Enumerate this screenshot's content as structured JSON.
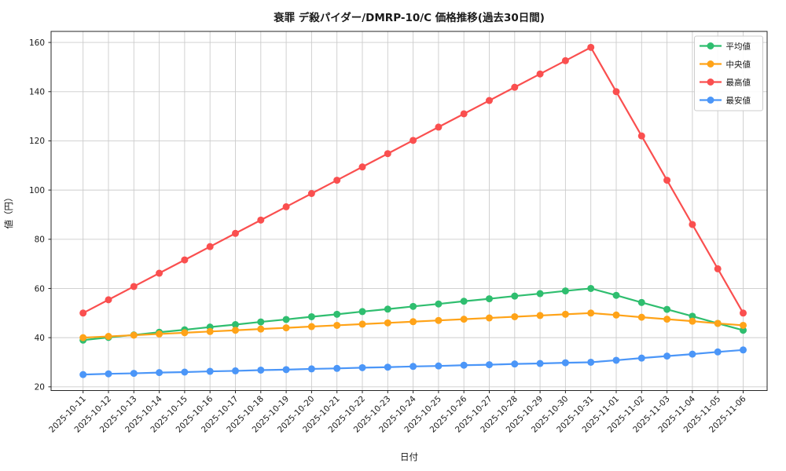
{
  "chart_data": {
    "type": "line",
    "title": "衰罪 デ殺パイダー/DMRP-10/C 価格推移(過去30日間)",
    "xlabel": "日付",
    "ylabel": "値（円）",
    "x": [
      "2025-10-11",
      "2025-10-12",
      "2025-10-13",
      "2025-10-14",
      "2025-10-15",
      "2025-10-16",
      "2025-10-17",
      "2025-10-18",
      "2025-10-19",
      "2025-10-20",
      "2025-10-21",
      "2025-10-22",
      "2025-10-23",
      "2025-10-24",
      "2025-10-25",
      "2025-10-26",
      "2025-10-27",
      "2025-10-28",
      "2025-10-29",
      "2025-10-30",
      "2025-10-31",
      "2025-11-01",
      "2025-11-02",
      "2025-11-03",
      "2025-11-04",
      "2025-11-05",
      "2025-11-06"
    ],
    "series": [
      {
        "id": "average",
        "name": "平均値",
        "color": "#2fbe6f",
        "values": [
          39,
          40.1,
          41.1,
          42.2,
          43.2,
          44.3,
          45.3,
          46.4,
          47.4,
          48.5,
          49.5,
          50.6,
          51.6,
          52.7,
          53.7,
          54.8,
          55.8,
          56.9,
          57.9,
          59,
          60,
          57.2,
          54.3,
          51.5,
          48.7,
          45.8,
          43
        ]
      },
      {
        "id": "median",
        "name": "中央値",
        "color": "#ffa318",
        "values": [
          40,
          40.5,
          41,
          41.5,
          42,
          42.5,
          43,
          43.5,
          44,
          44.5,
          45,
          45.5,
          46,
          46.5,
          47,
          47.5,
          48,
          48.5,
          49,
          49.5,
          50,
          49.2,
          48.3,
          47.5,
          46.7,
          45.8,
          45
        ]
      },
      {
        "id": "max",
        "name": "最高値",
        "color": "#fa4f4f",
        "values": [
          50,
          55.4,
          60.8,
          66.2,
          71.6,
          77,
          82.4,
          87.8,
          93.2,
          98.6,
          104,
          109.4,
          114.8,
          120.2,
          125.6,
          131,
          136.4,
          141.8,
          147.2,
          152.6,
          158,
          140,
          122,
          104,
          86,
          68,
          50
        ]
      },
      {
        "id": "min",
        "name": "最安値",
        "color": "#4b96f8",
        "values": [
          25,
          25.3,
          25.5,
          25.8,
          26,
          26.3,
          26.5,
          26.8,
          27,
          27.3,
          27.5,
          27.8,
          28,
          28.3,
          28.5,
          28.8,
          29,
          29.3,
          29.5,
          29.8,
          30,
          30.8,
          31.7,
          32.5,
          33.3,
          34.2,
          35
        ]
      }
    ],
    "yticks": [
      20,
      40,
      60,
      80,
      100,
      120,
      140,
      160
    ],
    "ylim": [
      18.5,
      164.5
    ],
    "grid": true,
    "grid_color": "#cccccc",
    "spine_color": "#262626",
    "legend_position": "upper right",
    "xtick_rotation_deg": 45
  }
}
